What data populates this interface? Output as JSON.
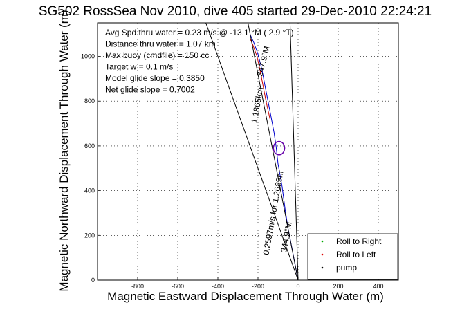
{
  "chart_data": {
    "type": "line",
    "title": "SG502 RossSea Nov 2010, dive 405 started 29-Dec-2010 22:24:21",
    "xlabel": "Magnetic Eastward Displacement Through Water (m)",
    "ylabel": "Magnetic Northward Displacement Through Water (m)",
    "xlim": [
      -1000,
      500
    ],
    "ylim": [
      0,
      1150
    ],
    "xticks": [
      -800,
      -600,
      -400,
      -200,
      0,
      200,
      400
    ],
    "yticks": [
      0,
      200,
      400,
      600,
      800,
      1000
    ],
    "grid": true,
    "legend_position": "bottom-right",
    "legend": [
      {
        "label": "Roll to Right",
        "color": "#00aa00"
      },
      {
        "label": "Roll to Left",
        "color": "#dd0000"
      },
      {
        "label": "pump",
        "color": "#000000"
      }
    ],
    "stats": [
      "Avg Spd thru water = 0.23 m/s @ -13.1   °M (  2.9 °T)",
      "Distance thru water = 1.07 km",
      "Max buoy (cmdfile) = 150 cc",
      "Target w = 0.1 m/s",
      "Model glide slope = 0.3850",
      "Net glide slope = 0.7002"
    ],
    "annotations": [
      {
        "text": "347.9°M",
        "x": -160,
        "y": 975,
        "angle": -76
      },
      {
        "text": "1.1865km",
        "x": -190,
        "y": 780,
        "angle": -80
      },
      {
        "text": "0.2597m/s for 1.2689hr",
        "x": -110,
        "y": 300,
        "angle": -80
      },
      {
        "text": "344.9°M",
        "x": -45,
        "y": 190,
        "angle": -80
      }
    ],
    "series": [
      {
        "color": "#0000cc",
        "points": [
          [
            0,
            0
          ],
          [
            -15,
            70
          ],
          [
            -30,
            140
          ],
          [
            -50,
            230
          ],
          [
            -65,
            320
          ],
          [
            -80,
            420
          ],
          [
            -100,
            520
          ],
          [
            -110,
            600
          ],
          [
            -120,
            660
          ],
          [
            -135,
            730
          ],
          [
            -150,
            800
          ],
          [
            -165,
            870
          ],
          [
            -180,
            940
          ],
          [
            -200,
            1010
          ],
          [
            -220,
            1060
          ],
          [
            -240,
            1100
          ]
        ]
      },
      {
        "color": "#cc0000",
        "points": [
          [
            -140,
            720
          ],
          [
            -160,
            800
          ],
          [
            -175,
            870
          ],
          [
            -190,
            940
          ],
          [
            -205,
            1000
          ],
          [
            -225,
            1050
          ],
          [
            -240,
            1080
          ]
        ]
      },
      {
        "color": "#000000",
        "points": [
          [
            0,
            0
          ],
          [
            -460,
            1150
          ]
        ]
      },
      {
        "color": "#000000",
        "points": [
          [
            0,
            0
          ],
          [
            -40,
            1150
          ]
        ]
      },
      {
        "color": "#000000",
        "points": [
          [
            0,
            0
          ],
          [
            -250,
            1150
          ]
        ]
      }
    ],
    "loop": {
      "x": -95,
      "y": 590,
      "rx": 28,
      "ry": 30,
      "color": "#6600aa"
    }
  }
}
